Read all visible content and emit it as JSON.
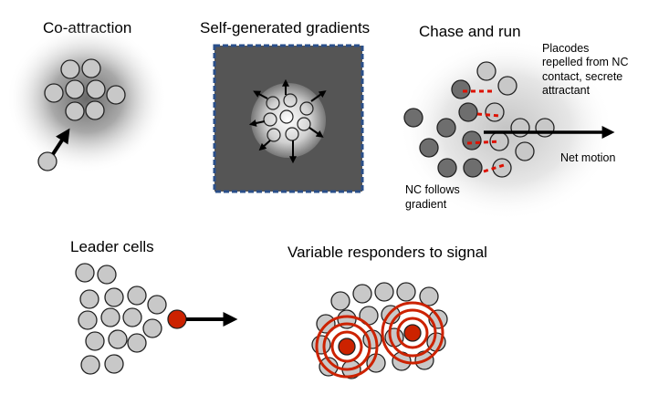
{
  "panels": {
    "co_attraction": {
      "title": "Co-attraction"
    },
    "self_generated": {
      "title": "Self-generated gradients"
    },
    "chase_run": {
      "title": "Chase and run",
      "placodes_note": [
        "Placodes",
        "repelled from NC",
        "contact, secrete",
        "attractant"
      ],
      "net_motion": "Net motion",
      "nc_note": [
        "NC follows",
        "gradient"
      ]
    },
    "leader_cells": {
      "title": "Leader cells"
    },
    "variable_responders": {
      "title": "Variable responders to signal"
    }
  },
  "colors": {
    "cell_fill": "#c8c8c8",
    "dark_cell_fill": "#6e6e6e",
    "leader_fill": "#cc2200",
    "contact_red": "#dd1100",
    "panel_bg": "#555555",
    "panel_border": "#2a4f8a"
  }
}
